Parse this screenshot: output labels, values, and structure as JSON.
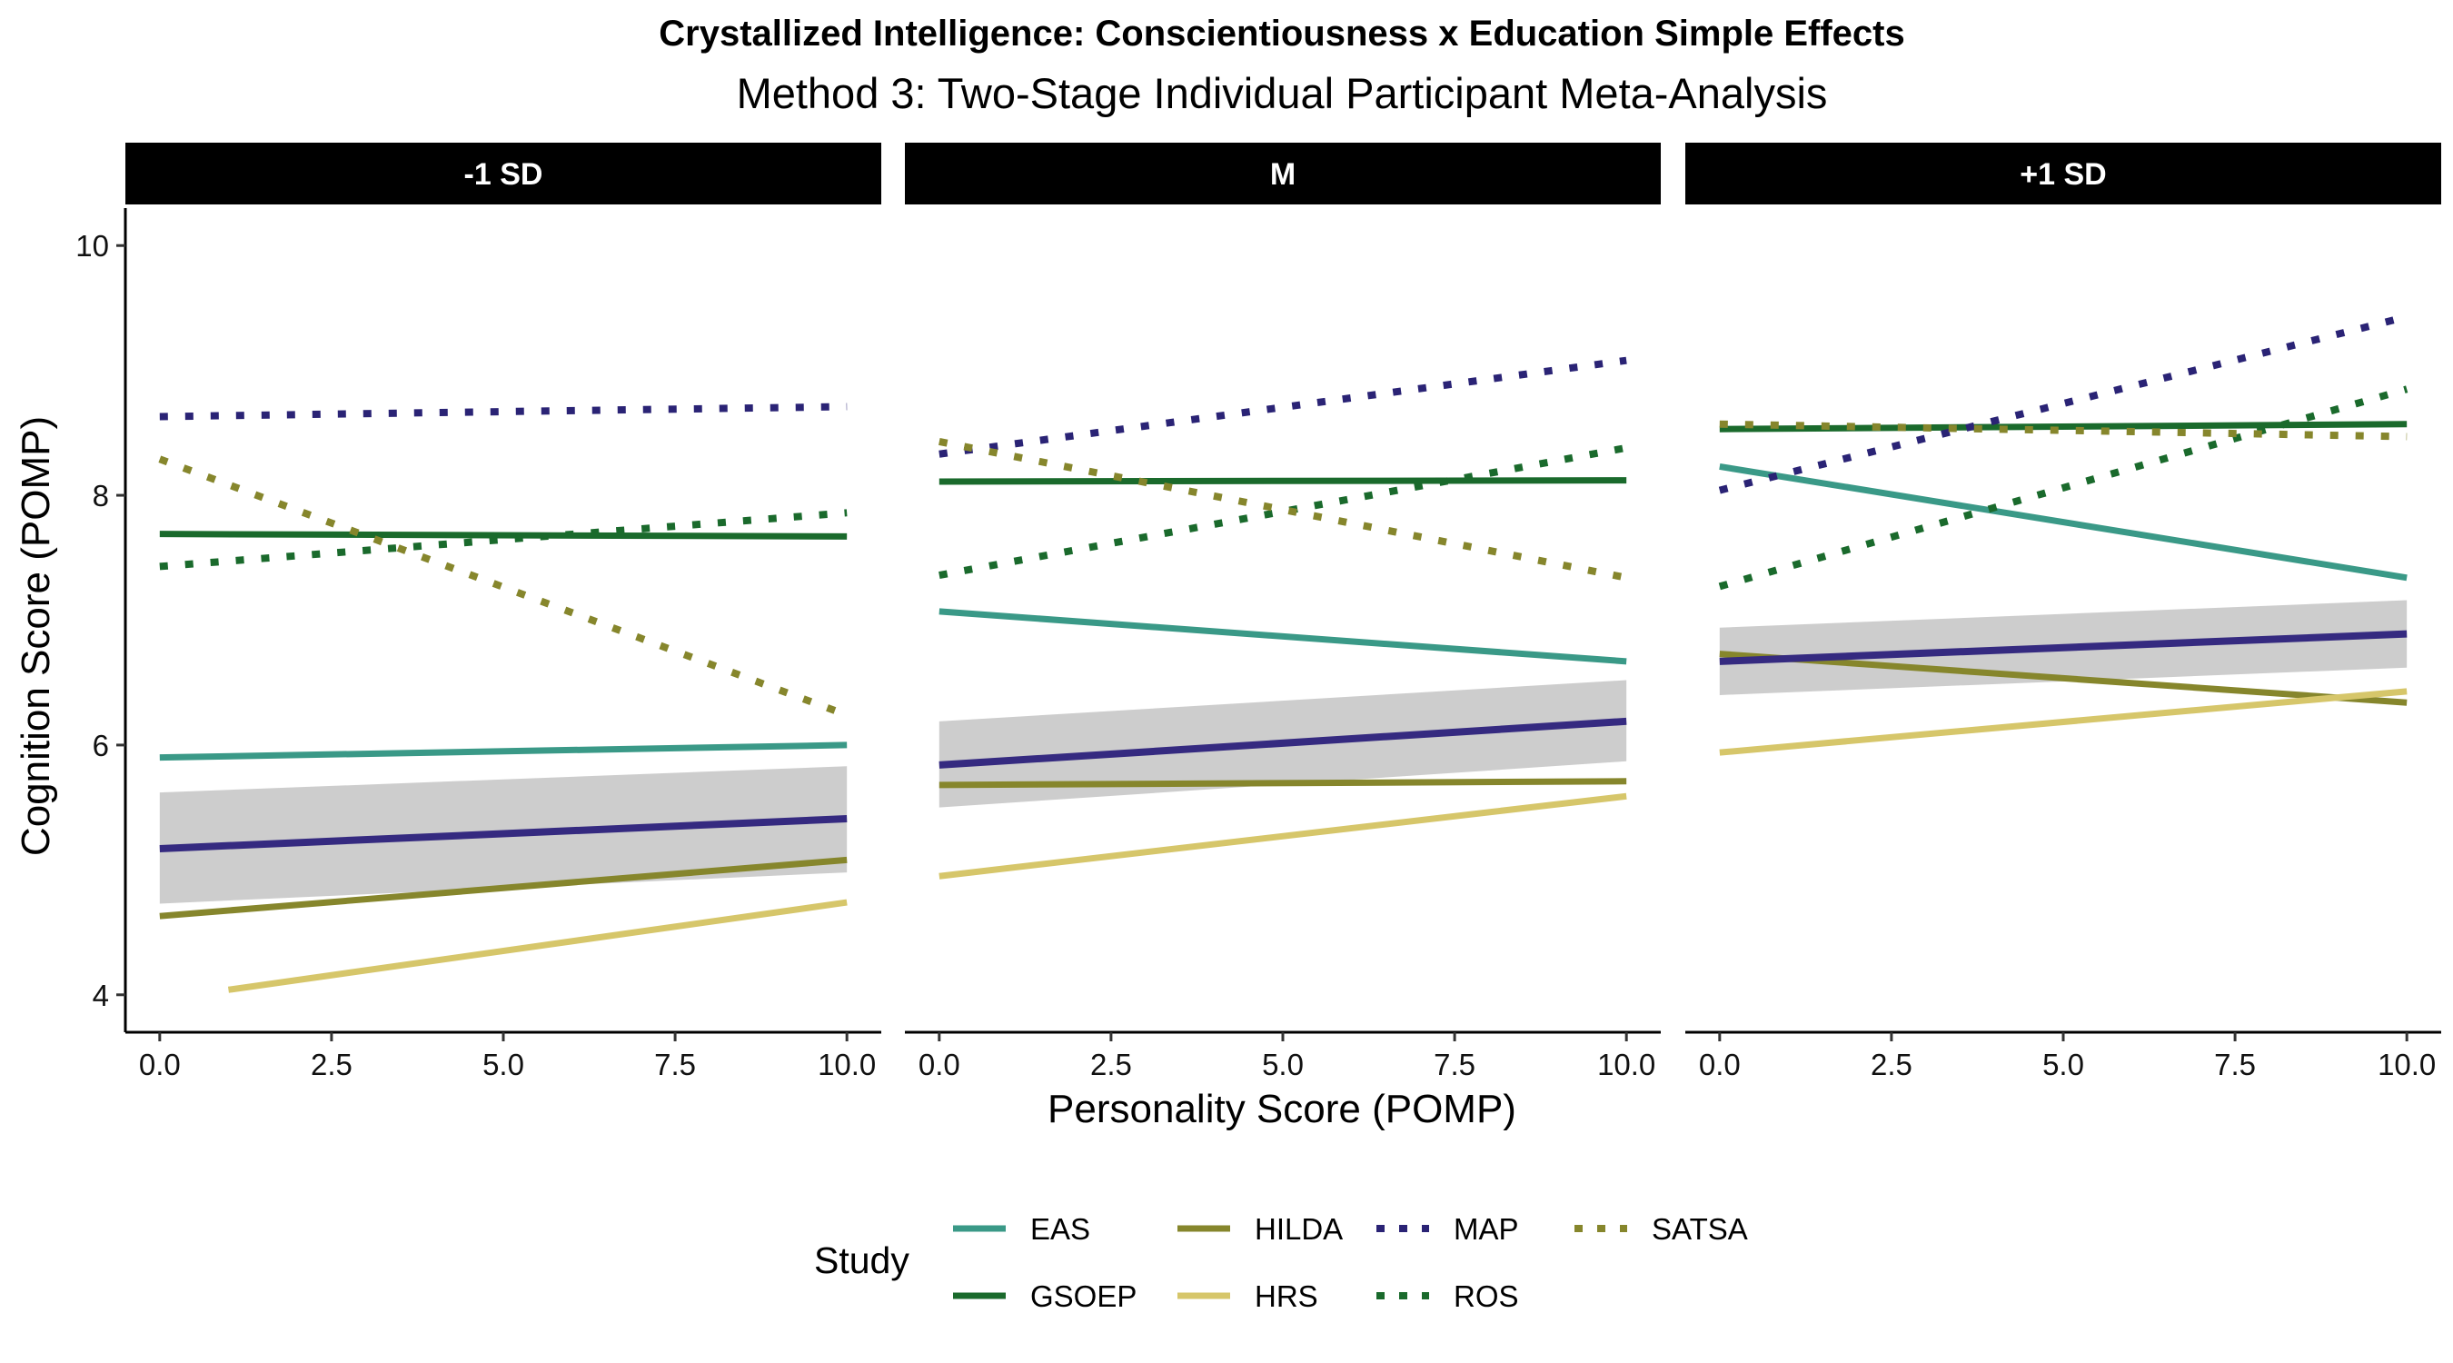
{
  "chart_data": {
    "type": "line",
    "title": "Crystallized Intelligence: Conscientiousness x Education Simple Effects",
    "subtitle": "Method 3: Two-Stage Individual Participant Meta-Analysis",
    "xlabel": "Personality Score (POMP)",
    "ylabel": "Cognition Score (POMP)",
    "xlim": [
      -0.5,
      10.5
    ],
    "ylim": [
      3.7,
      10.3
    ],
    "x_ticks": [
      0,
      2.5,
      5,
      7.5,
      10
    ],
    "x_tick_labels": [
      "0.0",
      "2.5",
      "5.0",
      "7.5",
      "10.0"
    ],
    "y_ticks": [
      4,
      6,
      8,
      10
    ],
    "y_tick_labels": [
      "4",
      "6",
      "8",
      "10"
    ],
    "grid": false,
    "legend_position": "bottom",
    "legend_title": "Study",
    "studies": [
      {
        "name": "EAS",
        "color": "#3a9987",
        "dash": "solid"
      },
      {
        "name": "GSOEP",
        "color": "#1a6a2c",
        "dash": "solid"
      },
      {
        "name": "HILDA",
        "color": "#86862c",
        "dash": "solid"
      },
      {
        "name": "HRS",
        "color": "#d6c66a",
        "dash": "solid"
      },
      {
        "name": "MAP",
        "color": "#2a2375",
        "dash": "dotted"
      },
      {
        "name": "ROS",
        "color": "#1a6a2c",
        "dash": "dotted"
      },
      {
        "name": "SATSA",
        "color": "#86862c",
        "dash": "dotted"
      }
    ],
    "overall": {
      "color": "#352a80",
      "band_color": "#c4c4c4"
    },
    "panels": [
      {
        "label": "-1 SD",
        "overall": {
          "x": [
            0,
            10
          ],
          "y": [
            5.17,
            5.41
          ],
          "lower": [
            4.73,
            4.98
          ],
          "upper": [
            5.62,
            5.83
          ]
        },
        "series": [
          {
            "name": "EAS",
            "x": [
              0,
              10
            ],
            "y": [
              5.9,
              6.0
            ]
          },
          {
            "name": "GSOEP",
            "x": [
              0,
              10
            ],
            "y": [
              7.69,
              7.67
            ]
          },
          {
            "name": "HILDA",
            "x": [
              0,
              10
            ],
            "y": [
              4.63,
              5.08
            ]
          },
          {
            "name": "HRS",
            "x": [
              1,
              10
            ],
            "y": [
              4.04,
              4.74
            ]
          },
          {
            "name": "MAP",
            "x": [
              0,
              10
            ],
            "y": [
              8.63,
              8.71
            ]
          },
          {
            "name": "ROS",
            "x": [
              0,
              10
            ],
            "y": [
              7.43,
              7.86
            ]
          },
          {
            "name": "SATSA",
            "x": [
              0,
              10
            ],
            "y": [
              8.29,
              6.24
            ]
          }
        ]
      },
      {
        "label": "M",
        "overall": {
          "x": [
            0,
            10
          ],
          "y": [
            5.84,
            6.19
          ],
          "lower": [
            5.5,
            5.87
          ],
          "upper": [
            6.19,
            6.52
          ]
        },
        "series": [
          {
            "name": "EAS",
            "x": [
              0,
              10
            ],
            "y": [
              7.07,
              6.67
            ]
          },
          {
            "name": "GSOEP",
            "x": [
              0,
              10
            ],
            "y": [
              8.11,
              8.12
            ]
          },
          {
            "name": "HILDA",
            "x": [
              0,
              10
            ],
            "y": [
              5.68,
              5.71
            ]
          },
          {
            "name": "HRS",
            "x": [
              0,
              10
            ],
            "y": [
              4.95,
              5.59
            ]
          },
          {
            "name": "MAP",
            "x": [
              0,
              10
            ],
            "y": [
              8.33,
              9.08
            ]
          },
          {
            "name": "ROS",
            "x": [
              0,
              10
            ],
            "y": [
              7.36,
              8.38
            ]
          },
          {
            "name": "SATSA",
            "x": [
              0,
              10
            ],
            "y": [
              8.43,
              7.34
            ]
          }
        ]
      },
      {
        "label": "+1 SD",
        "overall": {
          "x": [
            0,
            10
          ],
          "y": [
            6.67,
            6.89
          ],
          "lower": [
            6.4,
            6.62
          ],
          "upper": [
            6.94,
            7.16
          ]
        },
        "series": [
          {
            "name": "EAS",
            "x": [
              0,
              10
            ],
            "y": [
              8.23,
              7.34
            ]
          },
          {
            "name": "GSOEP",
            "x": [
              0,
              10
            ],
            "y": [
              8.53,
              8.57
            ]
          },
          {
            "name": "HILDA",
            "x": [
              0,
              10
            ],
            "y": [
              6.73,
              6.34
            ]
          },
          {
            "name": "HRS",
            "x": [
              0,
              10
            ],
            "y": [
              5.94,
              6.43
            ]
          },
          {
            "name": "MAP",
            "x": [
              0,
              10
            ],
            "y": [
              8.04,
              9.43
            ]
          },
          {
            "name": "ROS",
            "x": [
              0,
              10
            ],
            "y": [
              7.27,
              8.85
            ]
          },
          {
            "name": "SATSA",
            "x": [
              0,
              10
            ],
            "y": [
              8.57,
              8.47
            ]
          }
        ]
      }
    ]
  }
}
